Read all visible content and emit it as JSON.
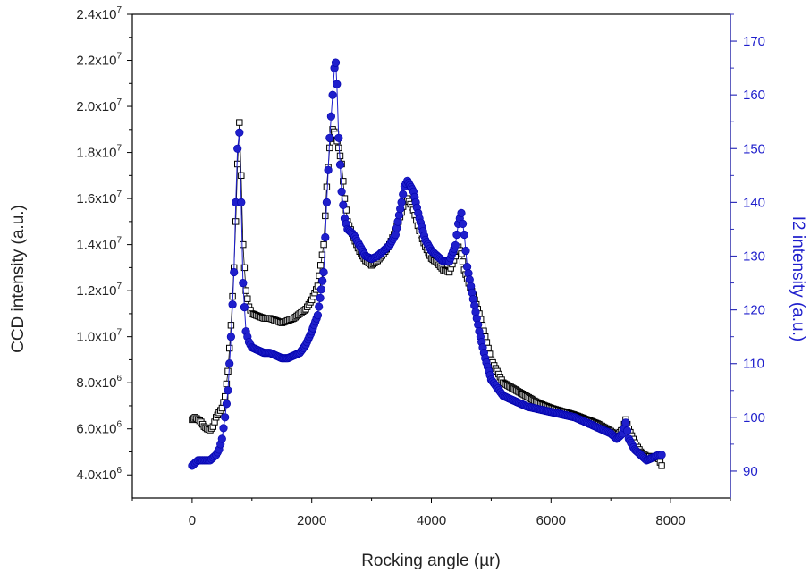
{
  "chart_data": {
    "type": "scatter",
    "title": "",
    "xlabel": "Rocking angle (µr)",
    "ylabel_left": "CCD intensity (a.u.)",
    "ylabel_right": "I2 intensity (a.u.)",
    "xlim": [
      -1000,
      9000
    ],
    "ylim_left": [
      3000000,
      24000000
    ],
    "ylim_right": [
      85,
      175
    ],
    "grid": false,
    "legend": "none",
    "x_ticks": [
      {
        "value": 0,
        "label": "0"
      },
      {
        "value": 2000,
        "label": "2000"
      },
      {
        "value": 4000,
        "label": "4000"
      },
      {
        "value": 6000,
        "label": "6000"
      },
      {
        "value": 8000,
        "label": "8000"
      }
    ],
    "y_left_ticks": [
      {
        "value": 4000000,
        "mantissa": "4.0x10",
        "exp": "6"
      },
      {
        "value": 6000000,
        "mantissa": "6.0x10",
        "exp": "6"
      },
      {
        "value": 8000000,
        "mantissa": "8.0x10",
        "exp": "6"
      },
      {
        "value": 10000000,
        "mantissa": "1.0x10",
        "exp": "7"
      },
      {
        "value": 12000000,
        "mantissa": "1.2x10",
        "exp": "7"
      },
      {
        "value": 14000000,
        "mantissa": "1.4x10",
        "exp": "7"
      },
      {
        "value": 16000000,
        "mantissa": "1.6x10",
        "exp": "7"
      },
      {
        "value": 18000000,
        "mantissa": "1.8x10",
        "exp": "7"
      },
      {
        "value": 20000000,
        "mantissa": "2.0x10",
        "exp": "7"
      },
      {
        "value": 22000000,
        "mantissa": "2.2x10",
        "exp": "7"
      },
      {
        "value": 24000000,
        "mantissa": "2.4x10",
        "exp": "7"
      }
    ],
    "y_right_ticks": [
      {
        "value": 90,
        "label": "90"
      },
      {
        "value": 100,
        "label": "100"
      },
      {
        "value": 110,
        "label": "110"
      },
      {
        "value": 120,
        "label": "120"
      },
      {
        "value": 130,
        "label": "130"
      },
      {
        "value": 140,
        "label": "140"
      },
      {
        "value": 150,
        "label": "150"
      },
      {
        "value": 160,
        "label": "160"
      },
      {
        "value": 170,
        "label": "170"
      }
    ],
    "series": [
      {
        "axis": "left",
        "marker": "open-square",
        "color": "#000000",
        "x": [
          0,
          50,
          100,
          150,
          200,
          250,
          300,
          350,
          400,
          450,
          500,
          550,
          600,
          650,
          700,
          730,
          760,
          790,
          820,
          850,
          900,
          950,
          1000,
          1100,
          1200,
          1300,
          1400,
          1500,
          1600,
          1700,
          1800,
          1900,
          2000,
          2100,
          2200,
          2250,
          2300,
          2350,
          2400,
          2450,
          2500,
          2550,
          2600,
          2700,
          2800,
          2900,
          3000,
          3100,
          3200,
          3300,
          3400,
          3500,
          3550,
          3600,
          3700,
          3800,
          3900,
          4000,
          4100,
          4200,
          4300,
          4400,
          4450,
          4500,
          4550,
          4600,
          4700,
          4800,
          4900,
          5000,
          5200,
          5400,
          5600,
          5800,
          6000,
          6200,
          6400,
          6600,
          6800,
          7000,
          7100,
          7200,
          7250,
          7300,
          7400,
          7500,
          7600,
          7700,
          7800,
          7850
        ],
        "y": [
          6400000,
          6500000,
          6400000,
          6300000,
          6100000,
          6000000,
          5950000,
          6100000,
          6500000,
          6700000,
          6900000,
          7400000,
          8500000,
          10500000,
          13000000,
          15000000,
          17500000,
          19300000,
          17000000,
          14000000,
          12000000,
          11300000,
          11000000,
          10900000,
          10800000,
          10800000,
          10700000,
          10600000,
          10700000,
          10800000,
          11000000,
          11200000,
          11600000,
          12200000,
          14000000,
          16500000,
          18200000,
          19000000,
          18800000,
          18200000,
          17500000,
          16000000,
          15000000,
          14300000,
          13700000,
          13300000,
          13100000,
          13300000,
          13600000,
          14000000,
          14600000,
          15400000,
          15900000,
          16000000,
          15500000,
          14600000,
          13900000,
          13400000,
          13200000,
          12900000,
          12800000,
          13500000,
          13900000,
          13600000,
          12900000,
          12500000,
          11800000,
          11000000,
          10000000,
          9000000,
          8000000,
          7700000,
          7400000,
          7100000,
          6900000,
          6750000,
          6600000,
          6400000,
          6200000,
          5900000,
          5700000,
          6000000,
          6400000,
          6000000,
          5400000,
          5000000,
          4800000,
          4800000,
          4700000,
          4400000
        ]
      },
      {
        "axis": "right",
        "marker": "filled-circle",
        "color": "#1f1fcc",
        "x": [
          0,
          50,
          100,
          150,
          200,
          250,
          300,
          350,
          400,
          450,
          500,
          550,
          600,
          650,
          700,
          730,
          760,
          790,
          820,
          850,
          900,
          950,
          1000,
          1100,
          1200,
          1300,
          1400,
          1500,
          1600,
          1700,
          1800,
          1900,
          2000,
          2100,
          2200,
          2250,
          2300,
          2350,
          2380,
          2400,
          2420,
          2450,
          2500,
          2550,
          2600,
          2700,
          2800,
          2900,
          3000,
          3100,
          3200,
          3300,
          3400,
          3500,
          3550,
          3600,
          3700,
          3800,
          3900,
          4000,
          4100,
          4200,
          4300,
          4400,
          4450,
          4500,
          4550,
          4600,
          4700,
          4800,
          4900,
          5000,
          5200,
          5400,
          5600,
          5800,
          6000,
          6200,
          6400,
          6600,
          6800,
          7000,
          7100,
          7200,
          7250,
          7300,
          7400,
          7500,
          7600,
          7700,
          7800,
          7850
        ],
        "y": [
          91,
          91.5,
          92,
          92,
          92,
          92,
          92,
          92.5,
          93,
          94,
          96,
          100,
          105,
          115,
          127,
          140,
          150,
          153,
          140,
          125,
          116,
          114,
          113,
          112.5,
          112,
          112,
          111.5,
          111,
          111,
          111.5,
          112,
          113.5,
          116,
          119,
          127,
          140,
          152,
          160,
          165,
          166,
          162,
          152,
          142,
          137,
          135,
          134,
          132,
          130,
          129.5,
          130,
          131,
          132,
          134,
          140,
          143,
          144,
          142,
          137,
          133,
          131,
          130,
          129,
          129,
          132,
          136,
          138,
          134,
          128,
          122,
          116,
          111,
          107,
          104,
          103,
          102,
          101.5,
          101,
          100.5,
          100,
          99,
          98,
          97,
          96,
          97,
          99,
          96,
          94,
          93,
          92,
          92.5,
          93,
          93
        ]
      }
    ]
  }
}
